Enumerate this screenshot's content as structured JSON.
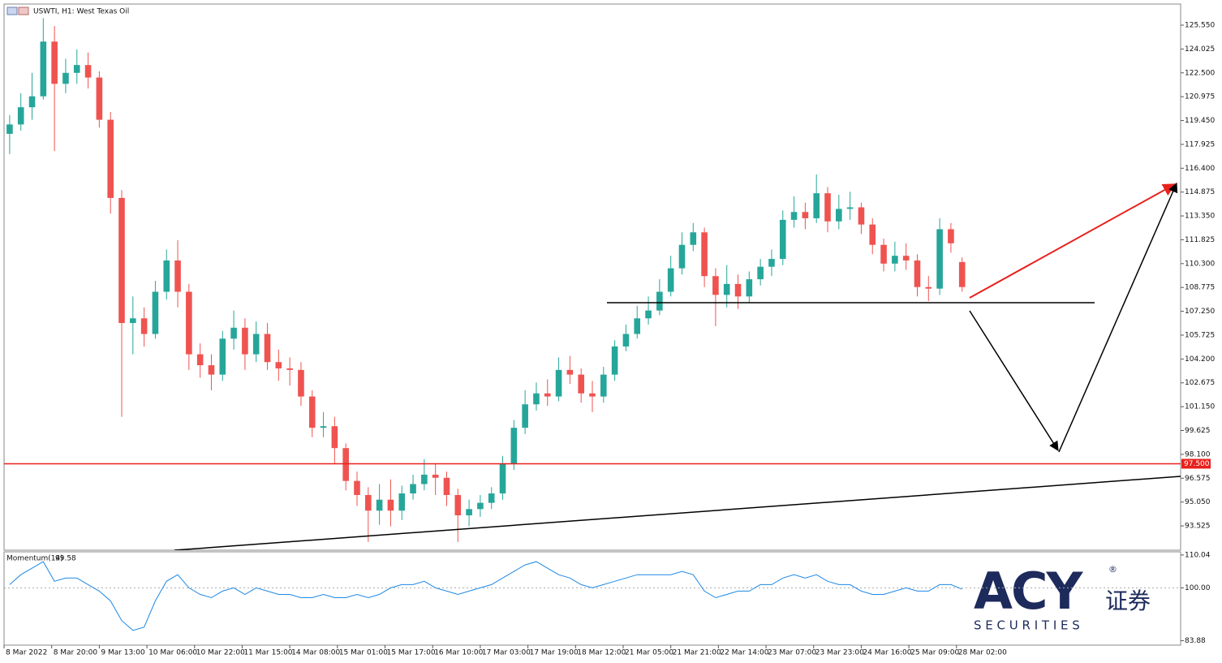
{
  "header": {
    "title": "USWTI, H1:  West Texas Oil"
  },
  "chart_data": [
    {
      "type": "candlestick",
      "colors": {
        "up": "#26a69a",
        "down": "#ef5350"
      },
      "xlim": [
        -0.5,
        104.5
      ],
      "ylim": [
        91.97,
        126.9
      ],
      "yticks": [
        {
          "value": 125.55,
          "label": "125.550"
        },
        {
          "value": 124.025,
          "label": "124.025"
        },
        {
          "value": 122.5,
          "label": "122.500"
        },
        {
          "value": 120.975,
          "label": "120.975"
        },
        {
          "value": 119.45,
          "label": "119.450"
        },
        {
          "value": 117.925,
          "label": "117.925"
        },
        {
          "value": 116.4,
          "label": "116.400"
        },
        {
          "value": 114.875,
          "label": "114.875"
        },
        {
          "value": 113.35,
          "label": "113.350"
        },
        {
          "value": 111.825,
          "label": "111.825"
        },
        {
          "value": 110.3,
          "label": "110.300"
        },
        {
          "value": 108.775,
          "label": "108.775"
        },
        {
          "value": 107.25,
          "label": "107.250"
        },
        {
          "value": 105.725,
          "label": "105.725"
        },
        {
          "value": 104.2,
          "label": "104.200"
        },
        {
          "value": 102.675,
          "label": "102.675"
        },
        {
          "value": 101.15,
          "label": "101.150"
        },
        {
          "value": 99.625,
          "label": "99.625"
        },
        {
          "value": 98.1,
          "label": "98.100"
        },
        {
          "value": 96.575,
          "label": "96.575"
        },
        {
          "value": 95.05,
          "label": "95.050"
        },
        {
          "value": 93.525,
          "label": "93.525"
        }
      ],
      "levels": [
        {
          "value": 97.5,
          "label": "97.500",
          "color": "#e8211c"
        }
      ],
      "open": [
        118.6,
        119.2,
        120.3,
        121,
        124.5,
        121.8,
        122.5,
        123,
        122.2,
        119.5,
        114.5,
        106.5,
        106.8,
        105.8,
        108.5,
        110.5,
        108.5,
        104.5,
        103.8,
        103.2,
        105.5,
        106.2,
        104.5,
        105.8,
        104,
        103.6,
        103.5,
        101.8,
        99.8,
        99.9,
        98.5,
        96.4,
        95.5,
        94.5,
        95.2,
        94.5,
        95.6,
        96.2,
        96.8,
        96.6,
        95.5,
        94.2,
        94.6,
        95,
        95.6,
        97.5,
        99.8,
        101.3,
        102,
        101.8,
        103.5,
        103.2,
        102,
        101.8,
        103.2,
        105,
        105.8,
        106.8,
        107.3,
        108.5,
        110,
        111.5,
        112.3,
        109.5,
        108.3,
        109,
        108.2,
        109.3,
        110.1,
        110.6,
        113.1,
        113.6,
        113.2,
        114.8,
        113,
        113.8,
        113.9,
        112.8,
        111.5,
        110.3,
        110.8,
        110.5,
        108.8,
        108.7,
        112.5,
        110.4
      ],
      "high": [
        119.8,
        121.2,
        122.5,
        126,
        125.5,
        123.4,
        124,
        123.8,
        122.6,
        120,
        115,
        108.2,
        107.5,
        109.2,
        111.2,
        111.8,
        109,
        105.2,
        104.5,
        106,
        107.3,
        106.8,
        106.6,
        106.5,
        104.8,
        104.3,
        104,
        102.2,
        100.8,
        100.5,
        98.8,
        97,
        96,
        96.2,
        96.5,
        96.1,
        96.8,
        97.8,
        97.5,
        97,
        95.9,
        95.2,
        95.5,
        96,
        98,
        100.3,
        102.2,
        102.7,
        102.9,
        104.3,
        104.4,
        103.6,
        102.8,
        103.7,
        105.4,
        106.4,
        107.6,
        108.2,
        109.3,
        110.8,
        112.3,
        112.9,
        112.6,
        110,
        110.2,
        109.6,
        109.8,
        110.6,
        111.2,
        113.7,
        114.6,
        114.2,
        116,
        115.2,
        114.7,
        114.9,
        114.2,
        113.2,
        111.9,
        111.7,
        111.6,
        110.9,
        109.5,
        113.2,
        112.9,
        110.7
      ],
      "low": [
        117.3,
        118.8,
        119.5,
        120.8,
        117.5,
        121.2,
        121.8,
        121.5,
        119,
        113.5,
        100.5,
        104.5,
        105,
        105.5,
        108,
        107.5,
        103.5,
        103,
        102.2,
        102.8,
        104.8,
        103.5,
        104,
        103.5,
        102.8,
        102.5,
        101.2,
        99.2,
        99.2,
        97.5,
        95.8,
        94.8,
        92.5,
        93.6,
        93.5,
        93.9,
        95.2,
        95.8,
        95.5,
        94.8,
        92.5,
        93.5,
        94.1,
        94.6,
        95.2,
        97.1,
        99.4,
        100.9,
        101.2,
        101.5,
        102.6,
        101.4,
        100.8,
        101.4,
        102.8,
        104.7,
        105.5,
        106.4,
        107,
        108.2,
        109.6,
        111.1,
        108.8,
        106.3,
        107.5,
        107.4,
        107.8,
        108.9,
        109.5,
        110.2,
        112.6,
        112.5,
        112.9,
        112.3,
        112.5,
        113.1,
        112.2,
        110.9,
        109.8,
        109.8,
        109.9,
        108.2,
        107.9,
        108.3,
        111,
        108.5
      ],
      "close": [
        119.2,
        120.3,
        121,
        124.5,
        121.8,
        122.5,
        123,
        122.2,
        119.5,
        114.5,
        106.5,
        106.8,
        105.8,
        108.5,
        110.5,
        108.5,
        104.5,
        103.8,
        103.2,
        105.5,
        106.2,
        104.5,
        105.8,
        104,
        103.6,
        103.5,
        101.8,
        99.8,
        99.9,
        98.5,
        96.4,
        95.5,
        94.5,
        95.2,
        94.5,
        95.6,
        96.2,
        96.8,
        96.6,
        95.5,
        94.2,
        94.6,
        95,
        95.6,
        97.5,
        99.8,
        101.3,
        102,
        101.8,
        103.5,
        103.2,
        102,
        101.8,
        103.2,
        105,
        105.8,
        106.8,
        107.3,
        108.5,
        110,
        111.5,
        112.3,
        109.5,
        108.3,
        109,
        108.2,
        109.3,
        110.1,
        110.6,
        113.1,
        113.6,
        113.2,
        114.8,
        113,
        113.8,
        113.9,
        112.8,
        111.5,
        110.3,
        110.8,
        110.5,
        108.8,
        108.7,
        112.5,
        111.6,
        108.8
      ]
    },
    {
      "type": "line",
      "title": "Momentum(14)",
      "color": "#1e88e5",
      "xlim": [
        -0.5,
        104.5
      ],
      "ylim": [
        82.5,
        111
      ],
      "yticks": [
        110.04,
        {
          "value": 100,
          "label": "100.00"
        },
        83.88
      ],
      "xticks": [
        {
          "value": -0.5,
          "label": "8 Mar 2022"
        },
        {
          "value": 3.75,
          "label": "8 Mar 20:00"
        },
        {
          "value": 8,
          "label": "9 Mar 13:00"
        },
        {
          "value": 12.25,
          "label": "10 Mar 06:00"
        },
        {
          "value": 16.5,
          "label": "10 Mar 22:00"
        },
        {
          "value": 20.75,
          "label": "11 Mar 15:00"
        },
        {
          "value": 25,
          "label": "14 Mar 08:00"
        },
        {
          "value": 29.25,
          "label": "15 Mar 01:00"
        },
        {
          "value": 33.5,
          "label": "15 Mar 17:00"
        },
        {
          "value": 37.75,
          "label": "16 Mar 10:00"
        },
        {
          "value": 42,
          "label": "17 Mar 03:00"
        },
        {
          "value": 46.25,
          "label": "17 Mar 19:00"
        },
        {
          "value": 50.5,
          "label": "18 Mar 12:00"
        },
        {
          "value": 54.75,
          "label": "21 Mar 05:00"
        },
        {
          "value": 59,
          "label": "21 Mar 21:00"
        },
        {
          "value": 63.25,
          "label": "22 Mar 14:00"
        },
        {
          "value": 67.5,
          "label": "23 Mar 07:00"
        },
        {
          "value": 71.75,
          "label": "23 Mar 23:00"
        },
        {
          "value": 76,
          "label": "24 Mar 16:00"
        },
        {
          "value": 80.25,
          "label": "25 Mar 09:00"
        },
        {
          "value": 84.5,
          "label": "28 Mar 02:00"
        }
      ],
      "values": [
        101,
        104,
        106,
        108,
        102,
        103,
        103,
        101,
        99,
        96,
        90,
        87,
        88,
        96,
        102,
        104,
        100,
        98,
        97,
        99,
        100,
        98,
        100,
        99,
        98,
        98,
        97,
        97,
        98,
        97,
        97,
        98,
        97,
        98,
        100,
        101,
        101,
        102,
        100,
        99,
        98,
        99,
        100,
        101,
        103,
        105,
        107,
        108,
        106,
        104,
        103,
        101,
        100,
        101,
        102,
        103,
        104,
        104,
        104,
        104,
        105,
        104,
        99,
        97,
        98,
        99,
        99,
        101,
        101,
        103,
        104,
        103,
        104,
        102,
        101,
        101,
        99,
        98,
        98,
        99,
        100,
        99,
        99,
        101,
        101,
        99.58
      ]
    }
  ],
  "logo": {
    "brand": "ACY",
    "cn": "证券",
    "sub": "S E C U R I T I E S",
    "reg": "®"
  }
}
